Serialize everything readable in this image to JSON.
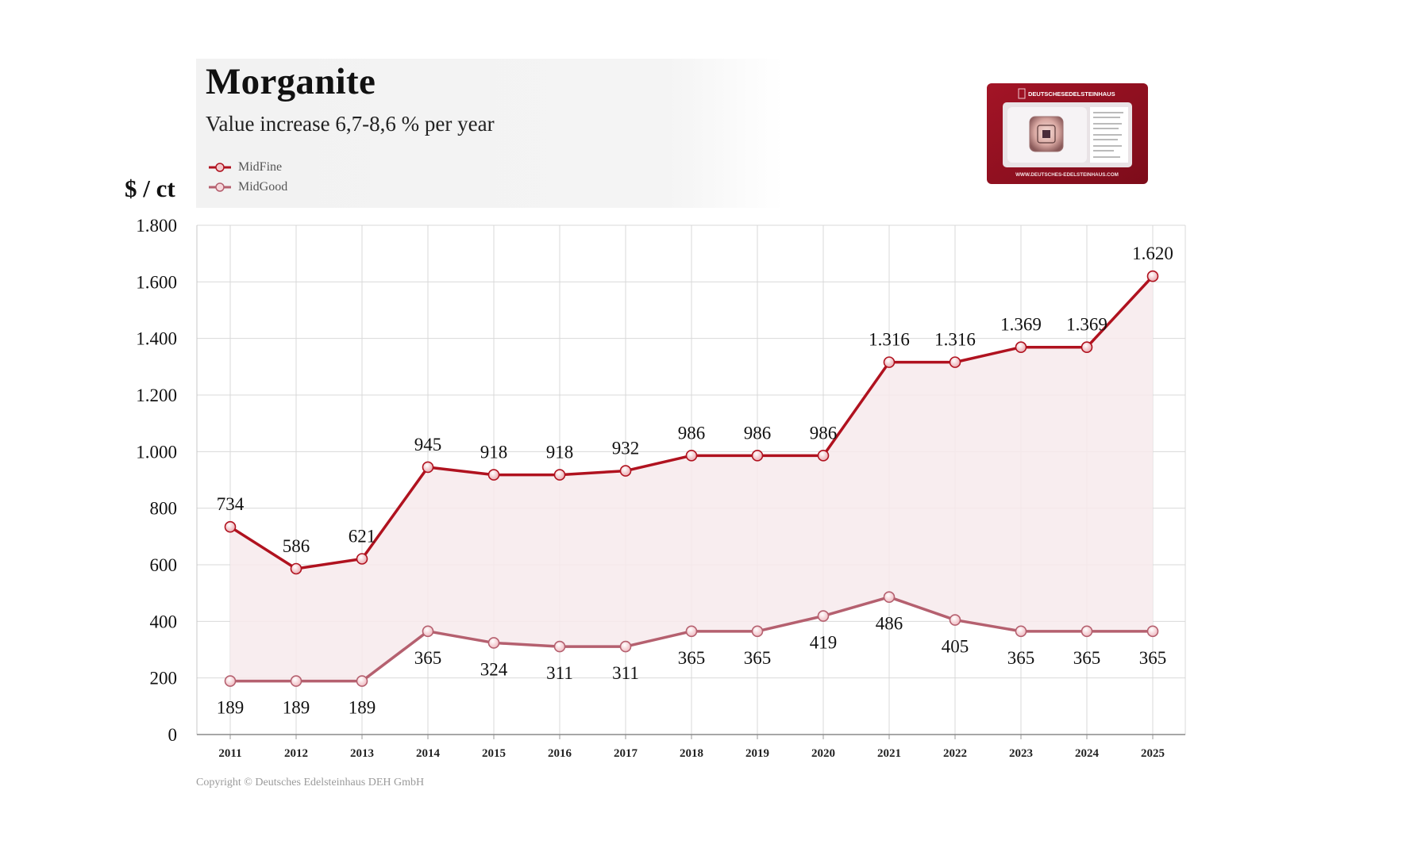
{
  "title": "Morganite",
  "subtitle": "Value increase 6,7-8,6 % per year",
  "ylabel_text": "$ / ct",
  "copyright": "Copyright © Deutsches Edelsteinhaus DEH GmbH",
  "legend": [
    {
      "name": "MidFine",
      "color": "#b0121f"
    },
    {
      "name": "MidGood",
      "color": "#b5606f"
    }
  ],
  "certificate": {
    "brand": "DEUTSCHESEDELSTEINHAUS",
    "url": "WWW.DEUTSCHES-EDELSTEINHAUS.COM"
  },
  "chart_data": {
    "type": "line",
    "title": "Morganite",
    "subtitle": "Value increase 6,7-8,6 % per year",
    "xlabel": "",
    "ylabel": "$ / ct",
    "x": [
      "2011",
      "2012",
      "2013",
      "2014",
      "2015",
      "2016",
      "2017",
      "2018",
      "2019",
      "2020",
      "2021",
      "2022",
      "2023",
      "2024",
      "2025"
    ],
    "ylim": [
      0,
      1800
    ],
    "yticks": [
      0,
      200,
      400,
      600,
      800,
      1000,
      1200,
      1400,
      1600,
      1800
    ],
    "ytick_labels": [
      "0",
      "200",
      "400",
      "600",
      "800",
      "1.000",
      "1.200",
      "1.400",
      "1.600",
      "1.800"
    ],
    "grid": true,
    "legend_position": "top-left",
    "series": [
      {
        "name": "MidFine",
        "color": "#b0121f",
        "values": [
          734,
          586,
          621,
          945,
          918,
          918,
          932,
          986,
          986,
          986,
          1316,
          1316,
          1369,
          1369,
          1620
        ],
        "labels": [
          "734",
          "586",
          "621",
          "945",
          "918",
          "918",
          "932",
          "986",
          "986",
          "986",
          "1.316",
          "1.316",
          "1.369",
          "1.369",
          "1.620"
        ],
        "label_position": "above"
      },
      {
        "name": "MidGood",
        "color": "#b5606f",
        "values": [
          189,
          189,
          189,
          365,
          324,
          311,
          311,
          365,
          365,
          419,
          486,
          405,
          365,
          365,
          365
        ],
        "labels": [
          "189",
          "189",
          "189",
          "365",
          "324",
          "311",
          "311",
          "365",
          "365",
          "419",
          "486",
          "405",
          "365",
          "365",
          "365"
        ],
        "label_position": "below"
      }
    ],
    "fill_between": {
      "color": "#f7eaec"
    }
  }
}
